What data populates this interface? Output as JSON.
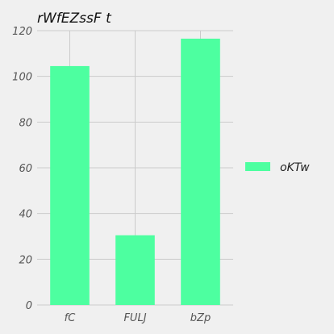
{
  "chart_data": {
    "type": "bar",
    "title": "rWfEZssF  t",
    "categories": [
      "fC",
      "FULJ",
      "bZp"
    ],
    "series": [
      {
        "name": "oKTw",
        "values": [
          104.5,
          30.5,
          116.5
        ],
        "color": "#4dffa0"
      }
    ],
    "ylim": [
      0,
      120
    ],
    "yticks": [
      0,
      20,
      40,
      60,
      80,
      100,
      120
    ],
    "grid": true,
    "legend_position": "right"
  }
}
